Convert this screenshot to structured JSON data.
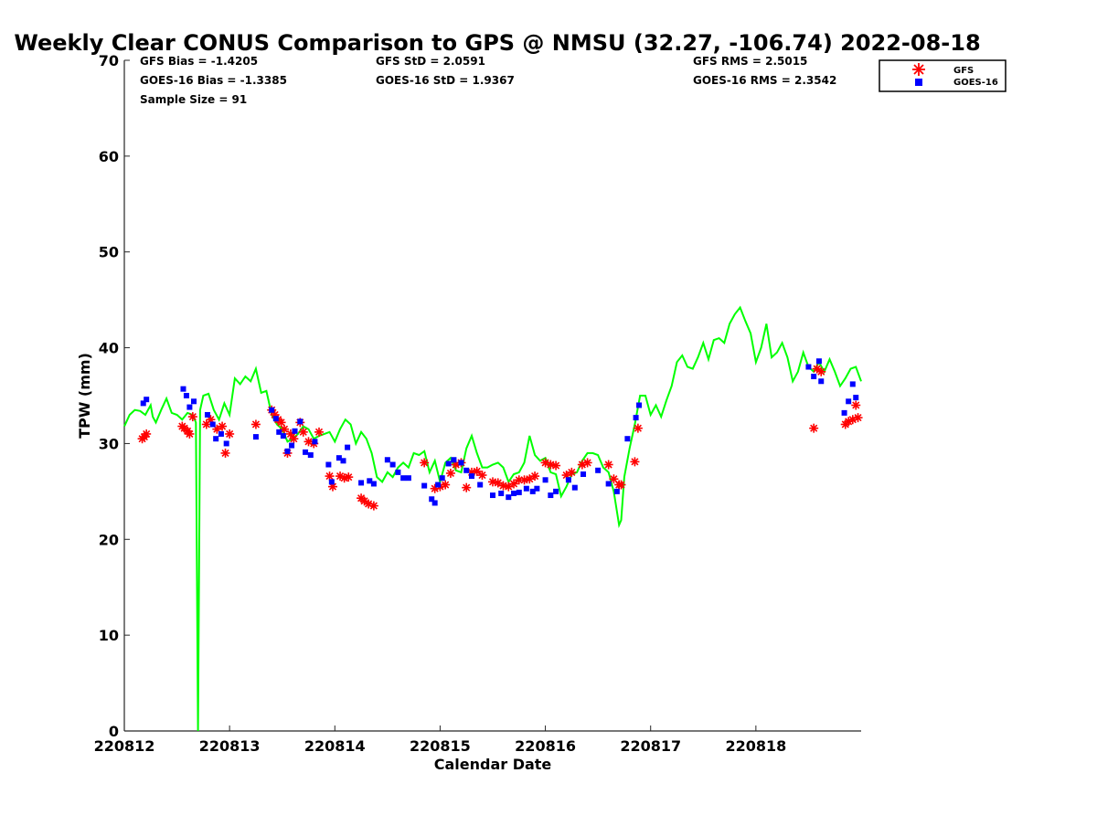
{
  "chart_data": {
    "type": "line",
    "title": "Weekly Clear CONUS Comparison to GPS @ NMSU (32.27, -106.74) 2022-08-18",
    "xlabel": "Calendar Date",
    "ylabel": "TPW (mm)",
    "xlim": [
      "220812",
      "220819"
    ],
    "ylim": [
      0,
      70
    ],
    "x_ticks": [
      "220812",
      "220813",
      "220814",
      "220815",
      "220816",
      "220817",
      "220818"
    ],
    "y_ticks": [
      0,
      10,
      20,
      30,
      40,
      50,
      60,
      70
    ],
    "grid": false,
    "legend_position": "top-right",
    "stats": {
      "gfs_bias": "GFS Bias = -1.4205",
      "goes_bias": "GOES-16 Bias = -1.3385",
      "sample_size": "Sample Size = 91",
      "gfs_std": "GFS StD = 2.0591",
      "goes_std": "GOES-16 StD = 1.9367",
      "gfs_rms": "GFS RMS = 2.5015",
      "goes_rms": "GOES-16 RMS = 2.3542"
    },
    "legend": [
      {
        "name": "GFS",
        "marker": "asterisk",
        "color": "#ff0000"
      },
      {
        "name": "GOES-16",
        "marker": "square",
        "color": "#0000ff"
      }
    ],
    "gps_line": {
      "color": "#00ff00",
      "points": [
        [
          0.0,
          31.8
        ],
        [
          0.05,
          33.0
        ],
        [
          0.1,
          33.5
        ],
        [
          0.15,
          33.4
        ],
        [
          0.2,
          33.0
        ],
        [
          0.25,
          34.0
        ],
        [
          0.27,
          32.8
        ],
        [
          0.3,
          32.2
        ],
        [
          0.35,
          33.5
        ],
        [
          0.4,
          34.7
        ],
        [
          0.45,
          33.2
        ],
        [
          0.5,
          33.0
        ],
        [
          0.55,
          32.5
        ],
        [
          0.6,
          33.2
        ],
        [
          0.65,
          33.0
        ],
        [
          0.68,
          32.2
        ],
        [
          0.7,
          0.0
        ],
        [
          0.72,
          33.5
        ],
        [
          0.75,
          35.0
        ],
        [
          0.8,
          35.2
        ],
        [
          0.85,
          33.5
        ],
        [
          0.9,
          32.5
        ],
        [
          0.95,
          34.2
        ],
        [
          1.0,
          33.0
        ],
        [
          1.05,
          36.8
        ],
        [
          1.1,
          36.2
        ],
        [
          1.15,
          37.0
        ],
        [
          1.2,
          36.5
        ],
        [
          1.25,
          37.8
        ],
        [
          1.3,
          35.3
        ],
        [
          1.35,
          35.5
        ],
        [
          1.4,
          33.0
        ],
        [
          1.45,
          32.0
        ],
        [
          1.5,
          31.5
        ],
        [
          1.55,
          30.2
        ],
        [
          1.6,
          30.5
        ],
        [
          1.65,
          31.0
        ],
        [
          1.7,
          31.8
        ],
        [
          1.75,
          31.5
        ],
        [
          1.8,
          30.5
        ],
        [
          1.85,
          30.8
        ],
        [
          1.9,
          31.0
        ],
        [
          1.95,
          31.2
        ],
        [
          2.0,
          30.2
        ],
        [
          2.05,
          31.5
        ],
        [
          2.1,
          32.5
        ],
        [
          2.15,
          32.0
        ],
        [
          2.2,
          30.0
        ],
        [
          2.25,
          31.2
        ],
        [
          2.3,
          30.5
        ],
        [
          2.35,
          29.0
        ],
        [
          2.4,
          26.5
        ],
        [
          2.45,
          26.0
        ],
        [
          2.5,
          27.0
        ],
        [
          2.55,
          26.5
        ],
        [
          2.6,
          27.5
        ],
        [
          2.65,
          28.0
        ],
        [
          2.7,
          27.5
        ],
        [
          2.75,
          29.0
        ],
        [
          2.8,
          28.8
        ],
        [
          2.85,
          29.2
        ],
        [
          2.9,
          27.0
        ],
        [
          2.95,
          28.2
        ],
        [
          3.0,
          26.0
        ],
        [
          3.05,
          28.0
        ],
        [
          3.1,
          28.5
        ],
        [
          3.15,
          27.2
        ],
        [
          3.2,
          27.0
        ],
        [
          3.25,
          29.5
        ],
        [
          3.3,
          30.8
        ],
        [
          3.35,
          29.0
        ],
        [
          3.4,
          27.5
        ],
        [
          3.45,
          27.5
        ],
        [
          3.5,
          27.8
        ],
        [
          3.55,
          28.0
        ],
        [
          3.6,
          27.5
        ],
        [
          3.65,
          26.0
        ],
        [
          3.7,
          26.8
        ],
        [
          3.75,
          27.0
        ],
        [
          3.8,
          28.0
        ],
        [
          3.85,
          30.8
        ],
        [
          3.9,
          28.8
        ],
        [
          3.95,
          28.2
        ],
        [
          4.0,
          28.5
        ],
        [
          4.05,
          27.0
        ],
        [
          4.1,
          26.8
        ],
        [
          4.15,
          24.5
        ],
        [
          4.2,
          25.5
        ],
        [
          4.25,
          26.8
        ],
        [
          4.3,
          27.0
        ],
        [
          4.35,
          28.2
        ],
        [
          4.4,
          29.0
        ],
        [
          4.45,
          29.0
        ],
        [
          4.5,
          28.8
        ],
        [
          4.55,
          27.5
        ],
        [
          4.6,
          27.0
        ],
        [
          4.65,
          25.0
        ],
        [
          4.7,
          21.5
        ],
        [
          4.72,
          22.0
        ],
        [
          4.75,
          26.5
        ],
        [
          4.8,
          29.5
        ],
        [
          4.85,
          32.0
        ],
        [
          4.9,
          35.0
        ],
        [
          4.95,
          35.0
        ],
        [
          5.0,
          33.0
        ],
        [
          5.05,
          34.0
        ],
        [
          5.1,
          32.8
        ],
        [
          5.15,
          34.5
        ],
        [
          5.2,
          36.0
        ],
        [
          5.25,
          38.5
        ],
        [
          5.3,
          39.2
        ],
        [
          5.35,
          38.0
        ],
        [
          5.4,
          37.8
        ],
        [
          5.45,
          39.0
        ],
        [
          5.5,
          40.5
        ],
        [
          5.55,
          38.8
        ],
        [
          5.6,
          40.8
        ],
        [
          5.65,
          41.0
        ],
        [
          5.7,
          40.5
        ],
        [
          5.75,
          42.5
        ],
        [
          5.8,
          43.5
        ],
        [
          5.85,
          44.2
        ],
        [
          5.9,
          42.8
        ],
        [
          5.95,
          41.5
        ],
        [
          6.0,
          38.5
        ],
        [
          6.05,
          40.0
        ],
        [
          6.1,
          42.5
        ],
        [
          6.15,
          39.0
        ],
        [
          6.2,
          39.5
        ],
        [
          6.25,
          40.5
        ],
        [
          6.3,
          39.0
        ],
        [
          6.35,
          36.5
        ],
        [
          6.4,
          37.5
        ],
        [
          6.45,
          39.5
        ],
        [
          6.5,
          38.0
        ],
        [
          6.55,
          37.5
        ],
        [
          6.6,
          38.5
        ],
        [
          6.65,
          37.5
        ],
        [
          6.7,
          38.8
        ],
        [
          6.75,
          37.5
        ],
        [
          6.8,
          36.0
        ],
        [
          6.85,
          36.8
        ],
        [
          6.9,
          37.8
        ],
        [
          6.95,
          38.0
        ],
        [
          7.0,
          36.5
        ]
      ]
    },
    "series": [
      {
        "name": "GFS",
        "x": [
          0.17,
          0.19,
          0.21,
          0.55,
          0.57,
          0.6,
          0.62,
          0.65,
          0.78,
          0.82,
          0.88,
          0.93,
          0.96,
          1.0,
          1.25,
          1.4,
          1.43,
          1.46,
          1.49,
          1.52,
          1.55,
          1.58,
          1.61,
          1.67,
          1.7,
          1.75,
          1.8,
          1.85,
          1.95,
          1.98,
          2.05,
          2.09,
          2.13,
          2.25,
          2.28,
          2.32,
          2.37,
          2.85,
          2.95,
          3.0,
          3.05,
          3.1,
          3.15,
          3.2,
          3.25,
          3.3,
          3.35,
          3.4,
          3.5,
          3.55,
          3.6,
          3.65,
          3.7,
          3.75,
          3.8,
          3.85,
          3.9,
          4.0,
          4.05,
          4.1,
          4.2,
          4.25,
          4.35,
          4.4,
          4.6,
          4.65,
          4.7,
          4.72,
          4.85,
          4.88,
          6.55,
          6.58,
          6.62,
          6.85,
          6.88,
          6.92,
          6.95,
          6.97
        ],
        "y": [
          30.5,
          30.7,
          31.0,
          31.8,
          31.6,
          31.3,
          31.0,
          32.8,
          32.0,
          32.5,
          31.5,
          31.8,
          29.0,
          31.0,
          32.0,
          33.5,
          33.0,
          32.5,
          32.2,
          31.5,
          29.0,
          31.0,
          30.5,
          32.2,
          31.2,
          30.2,
          30.0,
          31.2,
          26.6,
          25.5,
          26.6,
          26.4,
          26.5,
          24.3,
          24.0,
          23.7,
          23.5,
          28.0,
          25.3,
          25.5,
          25.7,
          26.9,
          27.8,
          28.0,
          25.4,
          27.0,
          27.1,
          26.7,
          26.0,
          25.9,
          25.6,
          25.5,
          25.8,
          26.2,
          26.2,
          26.3,
          26.6,
          28.0,
          27.8,
          27.7,
          26.7,
          27.0,
          27.8,
          28.0,
          27.8,
          26.3,
          25.7,
          25.7,
          28.1,
          31.6,
          31.6,
          37.8,
          37.5,
          32.0,
          32.3,
          32.5,
          34.0,
          32.7
        ]
      },
      {
        "name": "GOES-16",
        "x": [
          0.18,
          0.21,
          0.56,
          0.59,
          0.62,
          0.66,
          0.79,
          0.84,
          0.87,
          0.92,
          0.97,
          1.25,
          1.4,
          1.44,
          1.47,
          1.51,
          1.55,
          1.59,
          1.62,
          1.67,
          1.72,
          1.77,
          1.81,
          1.94,
          1.97,
          2.04,
          2.08,
          2.12,
          2.25,
          2.33,
          2.37,
          2.5,
          2.55,
          2.6,
          2.65,
          2.7,
          2.85,
          2.92,
          2.95,
          2.98,
          3.02,
          3.08,
          3.13,
          3.2,
          3.25,
          3.3,
          3.38,
          3.5,
          3.58,
          3.65,
          3.7,
          3.75,
          3.82,
          3.88,
          3.92,
          4.0,
          4.05,
          4.1,
          4.22,
          4.28,
          4.36,
          4.5,
          4.6,
          4.68,
          4.78,
          4.86,
          4.89,
          6.5,
          6.55,
          6.6,
          6.62,
          6.84,
          6.88,
          6.92,
          6.95
        ],
        "y": [
          34.2,
          34.6,
          35.7,
          35.0,
          33.8,
          34.4,
          33.0,
          32.0,
          30.5,
          31.0,
          30.0,
          30.7,
          33.5,
          32.6,
          31.2,
          30.8,
          29.2,
          29.8,
          31.3,
          32.3,
          29.1,
          28.8,
          30.2,
          27.8,
          26.0,
          28.5,
          28.2,
          29.6,
          25.9,
          26.1,
          25.8,
          28.3,
          27.8,
          27.0,
          26.4,
          26.4,
          25.6,
          24.2,
          23.8,
          25.7,
          26.4,
          27.9,
          28.3,
          28.0,
          27.2,
          26.6,
          25.7,
          24.6,
          24.8,
          24.4,
          24.8,
          24.9,
          25.3,
          25.0,
          25.3,
          26.2,
          24.6,
          25.0,
          26.2,
          25.4,
          26.8,
          27.2,
          25.8,
          25.0,
          30.5,
          32.7,
          34.0,
          38.0,
          37.0,
          38.6,
          36.5,
          33.2,
          34.4,
          36.2,
          34.8
        ]
      }
    ]
  }
}
